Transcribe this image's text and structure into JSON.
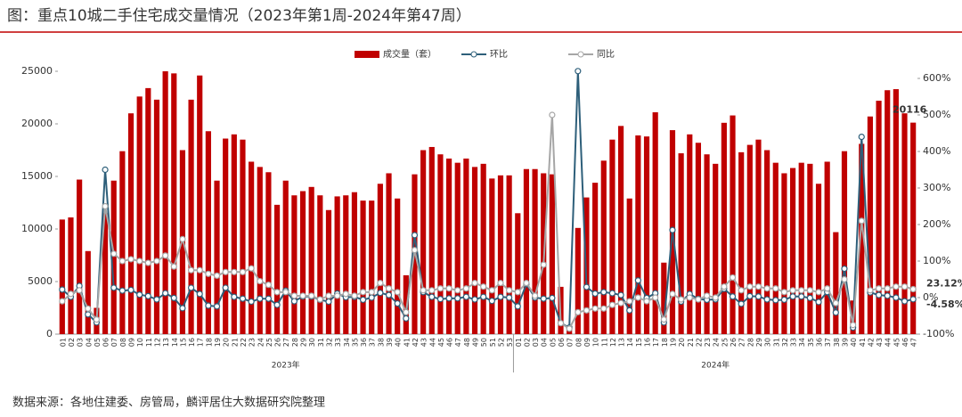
{
  "chart_data": {
    "type": "bar_line",
    "title": "图：重点10城二手住宅成交量情况（2023年第1周-2024年第47周）",
    "source": "数据来源：各地住建委、房管局，麟评居住大数据研究院整理",
    "groups": [
      {
        "label": "2023年",
        "count": 53
      },
      {
        "label": "2024年",
        "count": 47
      }
    ],
    "categories": [
      "01",
      "02",
      "03",
      "04",
      "05",
      "06",
      "07",
      "08",
      "09",
      "10",
      "11",
      "12",
      "13",
      "14",
      "15",
      "16",
      "17",
      "18",
      "19",
      "20",
      "21",
      "22",
      "23",
      "24",
      "25",
      "26",
      "27",
      "28",
      "29",
      "30",
      "31",
      "32",
      "33",
      "34",
      "35",
      "36",
      "37",
      "38",
      "39",
      "40",
      "41",
      "42",
      "43",
      "44",
      "45",
      "46",
      "47",
      "48",
      "49",
      "50",
      "51",
      "52",
      "53",
      "01",
      "02",
      "03",
      "04",
      "05",
      "06",
      "07",
      "08",
      "09",
      "10",
      "11",
      "12",
      "13",
      "14",
      "15",
      "16",
      "17",
      "18",
      "19",
      "20",
      "21",
      "22",
      "23",
      "24",
      "25",
      "26",
      "27",
      "28",
      "29",
      "30",
      "31",
      "32",
      "33",
      "34",
      "35",
      "36",
      "37",
      "38",
      "39",
      "40",
      "41",
      "42",
      "43",
      "44",
      "45",
      "46",
      "47"
    ],
    "series": [
      {
        "name": "成交量（套）",
        "color": "#c00000",
        "kind": "bar",
        "values": [
          10900,
          11100,
          14700,
          7900,
          2500,
          11500,
          14600,
          17400,
          21000,
          22600,
          23400,
          22300,
          25000,
          24800,
          17500,
          22300,
          24600,
          19300,
          14600,
          18600,
          19000,
          18500,
          16400,
          15900,
          15400,
          12300,
          14600,
          13200,
          13600,
          14000,
          13200,
          11800,
          13100,
          13200,
          13500,
          12700,
          12700,
          14300,
          15300,
          12900,
          5600,
          15200,
          17500,
          17800,
          17100,
          16700,
          16300,
          16700,
          15900,
          16200,
          14800,
          15100,
          15100,
          11500,
          15700,
          15700,
          15300,
          15200,
          4500,
          800,
          10100,
          13000,
          14400,
          16500,
          18500,
          19800,
          12900,
          18900,
          18800,
          21100,
          6800,
          19400,
          17200,
          19000,
          18200,
          17100,
          16200,
          20100,
          20800,
          17300,
          18000,
          18500,
          17500,
          16300,
          15300,
          15800,
          16300,
          16200,
          14300,
          16400,
          9700,
          17400,
          3200,
          18100,
          20700,
          22200,
          23200,
          23300,
          21000,
          20116
        ]
      },
      {
        "name": "环比",
        "color": "#2e5f7a",
        "kind": "line",
        "axis": "y2",
        "values": [
          22,
          2,
          32,
          -46,
          -68,
          350,
          27,
          19,
          21,
          8,
          4,
          -5,
          12,
          -1,
          -29,
          27,
          10,
          -22,
          -24,
          27,
          2,
          -3,
          -11,
          -3,
          -3,
          -20,
          19,
          -10,
          3,
          3,
          -6,
          -11,
          11,
          1,
          2,
          -6,
          0,
          13,
          7,
          -16,
          -57,
          171,
          15,
          2,
          -4,
          -2,
          -2,
          2,
          -5,
          2,
          -9,
          2,
          0,
          -24,
          37,
          0,
          -3,
          -1,
          -70,
          -82,
          620,
          29,
          11,
          15,
          12,
          7,
          -35,
          47,
          -1,
          12,
          -68,
          185,
          -11,
          10,
          -4,
          -6,
          -5,
          24,
          3,
          -17,
          4,
          3,
          -5,
          -7,
          -6,
          3,
          3,
          -1,
          -12,
          15,
          -41,
          79,
          -82,
          440,
          14,
          7,
          5,
          0,
          -10,
          -4.58
        ]
      },
      {
        "name": "同比",
        "color": "#a6a6a6",
        "kind": "line",
        "axis": "y2",
        "values": [
          -10,
          10,
          20,
          -30,
          -60,
          250,
          120,
          100,
          105,
          100,
          95,
          100,
          115,
          85,
          160,
          75,
          75,
          65,
          60,
          70,
          70,
          70,
          80,
          45,
          35,
          15,
          15,
          5,
          5,
          5,
          -5,
          5,
          5,
          10,
          5,
          15,
          15,
          40,
          25,
          15,
          -40,
          130,
          20,
          20,
          25,
          25,
          20,
          25,
          40,
          30,
          20,
          40,
          20,
          15,
          40,
          5,
          90,
          500,
          -70,
          -85,
          -40,
          -35,
          -30,
          -30,
          -20,
          -15,
          -10,
          0,
          -10,
          0,
          -60,
          10,
          -5,
          0,
          -5,
          5,
          0,
          30,
          55,
          20,
          30,
          30,
          25,
          25,
          15,
          20,
          20,
          20,
          15,
          25,
          -15,
          50,
          -75,
          210,
          20,
          25,
          25,
          30,
          30,
          23.12
        ]
      }
    ],
    "ylim": [
      0,
      25000
    ],
    "yticks": [
      0,
      5000,
      10000,
      15000,
      20000,
      25000
    ],
    "y2lim": [
      -100,
      600
    ],
    "y2ticks": [
      {
        "value": -100,
        "label": "-100%"
      },
      {
        "value": 0,
        "label": "0%"
      },
      {
        "value": 100,
        "label": "100%"
      },
      {
        "value": 200,
        "label": "200%"
      },
      {
        "value": 300,
        "label": "300%"
      },
      {
        "value": 400,
        "label": "400%"
      },
      {
        "value": 500,
        "label": "500%"
      },
      {
        "value": 600,
        "label": "600%"
      }
    ],
    "annotations": [
      {
        "text": "20116",
        "series": 0,
        "index": 99
      },
      {
        "text": "23.12%",
        "series": 2,
        "index": 99
      },
      {
        "text": "-4.58%",
        "series": 1,
        "index": 99
      }
    ]
  }
}
